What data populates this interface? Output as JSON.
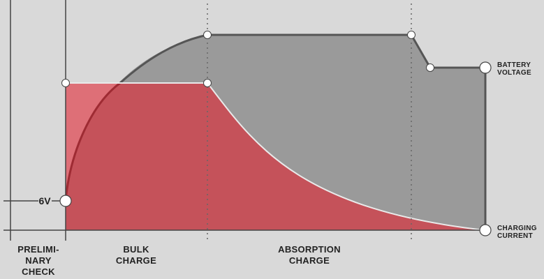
{
  "diagram": {
    "voltage_marker": "6V",
    "series_labels": {
      "battery_voltage": [
        "BATTERY",
        "VOLTAGE"
      ],
      "charging_current": [
        "CHARGING",
        "CURRENT"
      ]
    },
    "phases": [
      {
        "id": "preliminary-check",
        "lines": [
          "PRELIMI-",
          "NARY",
          "CHECK"
        ]
      },
      {
        "id": "bulk-charge",
        "lines": [
          "BULK",
          "CHARGE"
        ]
      },
      {
        "id": "absorption-charge",
        "lines": [
          "ABSORPTION",
          "CHARGE"
        ]
      }
    ],
    "colors": {
      "background": "#d9d9d9",
      "voltage_fill": "#9a9a9a",
      "voltage_line": "#555555",
      "current_fill": "#c5525a",
      "current_light": "#de6f77",
      "current_line": "#9e2b33",
      "axis": "#444444"
    }
  }
}
